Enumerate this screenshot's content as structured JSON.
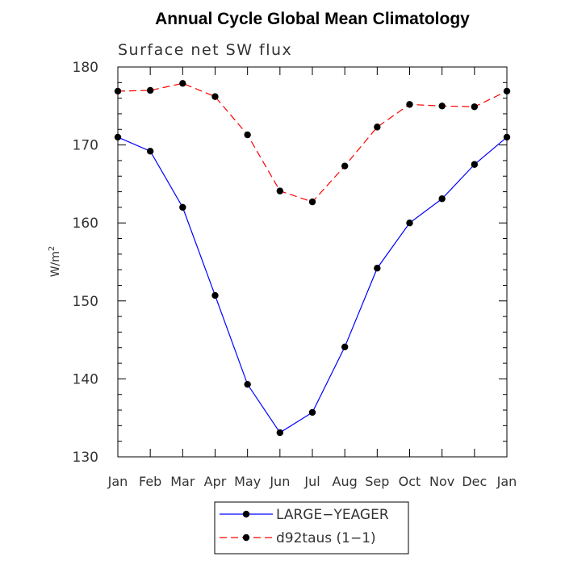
{
  "chart_data": {
    "type": "line",
    "title": "Annual Cycle Global Mean Climatology",
    "subtitle": "Surface net SW flux",
    "ylabel": "W/m",
    "ylabel_sup": "2",
    "xlabel": "",
    "ylim": [
      130,
      180
    ],
    "yticks": [
      130,
      140,
      150,
      160,
      170,
      180
    ],
    "categories": [
      "Jan",
      "Feb",
      "Mar",
      "Apr",
      "May",
      "Jun",
      "Jul",
      "Aug",
      "Sep",
      "Oct",
      "Nov",
      "Dec",
      "Jan"
    ],
    "series": [
      {
        "name": "LARGE−YEAGER",
        "color": "#0000ff",
        "dash": "solid",
        "values": [
          171.0,
          169.2,
          162.0,
          150.7,
          139.3,
          133.1,
          135.7,
          144.1,
          154.2,
          160.0,
          163.1,
          167.5,
          171.0
        ]
      },
      {
        "name": "d92taus (1−1)",
        "color": "#ff0000",
        "dash": "dashed",
        "values": [
          176.9,
          177.0,
          177.9,
          176.2,
          171.3,
          164.1,
          162.7,
          167.3,
          172.3,
          175.2,
          175.0,
          174.9,
          176.9
        ]
      }
    ],
    "legend_position": "bottom-center",
    "grid": false
  }
}
